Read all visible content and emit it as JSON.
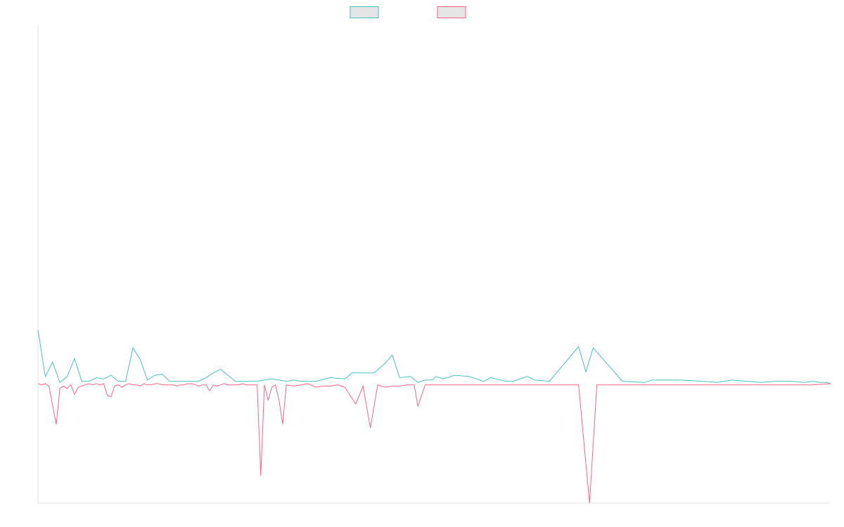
{
  "chart_data": {
    "type": "line",
    "title": "",
    "xlabel": "",
    "ylabel": "",
    "grid": false,
    "legend": {
      "placement": "top-center",
      "entries": [
        {
          "name": "",
          "color": "#4bc0c0",
          "fill": "#e5e5e5"
        },
        {
          "name": "",
          "color": "#ff6384",
          "fill": "#e5e5e5"
        }
      ]
    },
    "x_count": 217,
    "ylim": [
      -100,
      300
    ],
    "series": [
      {
        "name": "",
        "color": "#4bc0c0",
        "points": [
          [
            0,
            45
          ],
          [
            2,
            6
          ],
          [
            4,
            18
          ],
          [
            6,
            1
          ],
          [
            8,
            6
          ],
          [
            10,
            21
          ],
          [
            12,
            2
          ],
          [
            14,
            2
          ],
          [
            16,
            5
          ],
          [
            18,
            4
          ],
          [
            20,
            7
          ],
          [
            22,
            2
          ],
          [
            24,
            2
          ],
          [
            26,
            30
          ],
          [
            28,
            20
          ],
          [
            30,
            3
          ],
          [
            32,
            7
          ],
          [
            34,
            8
          ],
          [
            36,
            2
          ],
          [
            38,
            2
          ],
          [
            40,
            2
          ],
          [
            42,
            2
          ],
          [
            44,
            2
          ],
          [
            46,
            5
          ],
          [
            48,
            9
          ],
          [
            50,
            12
          ],
          [
            54,
            2
          ],
          [
            60,
            2
          ],
          [
            62,
            3
          ],
          [
            64,
            4
          ],
          [
            68,
            2
          ],
          [
            70,
            3
          ],
          [
            72,
            2
          ],
          [
            74,
            2
          ],
          [
            76,
            2
          ],
          [
            80,
            5
          ],
          [
            84,
            4
          ],
          [
            86,
            9
          ],
          [
            92,
            9
          ],
          [
            95,
            17
          ],
          [
            97,
            24
          ],
          [
            99,
            5
          ],
          [
            102,
            6
          ],
          [
            104,
            1
          ],
          [
            106,
            3
          ],
          [
            108,
            3
          ],
          [
            109,
            6
          ],
          [
            111,
            4
          ],
          [
            114,
            7
          ],
          [
            118,
            6
          ],
          [
            122,
            2
          ],
          [
            124,
            5
          ],
          [
            128,
            2
          ],
          [
            130,
            2
          ],
          [
            134,
            6
          ],
          [
            136,
            3
          ],
          [
            140,
            2
          ],
          [
            148,
            31
          ],
          [
            150,
            10
          ],
          [
            152,
            30
          ],
          [
            160,
            2
          ],
          [
            166,
            1
          ],
          [
            168,
            3
          ],
          [
            176,
            3
          ],
          [
            182,
            2
          ],
          [
            186,
            1
          ],
          [
            190,
            3
          ],
          [
            194,
            2
          ],
          [
            198,
            1
          ],
          [
            202,
            2
          ],
          [
            206,
            2
          ],
          [
            210,
            1
          ],
          [
            212,
            2
          ],
          [
            214,
            1
          ],
          [
            216,
            1
          ],
          [
            217,
            0
          ]
        ]
      },
      {
        "name": "",
        "color": "#ff6384",
        "points": [
          [
            0,
            0
          ],
          [
            1,
            -1
          ],
          [
            2,
            0
          ],
          [
            3,
            -2
          ],
          [
            5,
            -34
          ],
          [
            6,
            -4
          ],
          [
            7,
            -2
          ],
          [
            8,
            -4
          ],
          [
            9,
            -1
          ],
          [
            10,
            -9
          ],
          [
            11,
            -3
          ],
          [
            12,
            -2
          ],
          [
            13,
            -1
          ],
          [
            14,
            0
          ],
          [
            15,
            -1
          ],
          [
            16,
            0
          ],
          [
            17,
            -1
          ],
          [
            18,
            0
          ],
          [
            19,
            -10
          ],
          [
            20,
            -11
          ],
          [
            21,
            -2
          ],
          [
            22,
            -1
          ],
          [
            23,
            -3
          ],
          [
            24,
            -1
          ],
          [
            25,
            0
          ],
          [
            26,
            -1
          ],
          [
            27,
            -1
          ],
          [
            28,
            -2
          ],
          [
            29,
            0
          ],
          [
            30,
            -1
          ],
          [
            31,
            -1
          ],
          [
            32,
            0
          ],
          [
            33,
            0
          ],
          [
            34,
            -1
          ],
          [
            35,
            -1
          ],
          [
            36,
            -1
          ],
          [
            37,
            -1
          ],
          [
            38,
            -2
          ],
          [
            39,
            -1
          ],
          [
            40,
            -1
          ],
          [
            41,
            0
          ],
          [
            42,
            0
          ],
          [
            43,
            -1
          ],
          [
            44,
            -2
          ],
          [
            45,
            -1
          ],
          [
            46,
            -1
          ],
          [
            47,
            -6
          ],
          [
            48,
            -1
          ],
          [
            49,
            -2
          ],
          [
            50,
            -1
          ],
          [
            51,
            0
          ],
          [
            52,
            -1
          ],
          [
            53,
            -1
          ],
          [
            54,
            -1
          ],
          [
            55,
            -1
          ],
          [
            56,
            0
          ],
          [
            57,
            -1
          ],
          [
            58,
            -1
          ],
          [
            59,
            -1
          ],
          [
            60,
            -1
          ],
          [
            61,
            -77
          ],
          [
            62,
            -1
          ],
          [
            63,
            -14
          ],
          [
            64,
            -3
          ],
          [
            65,
            -1
          ],
          [
            66,
            -14
          ],
          [
            67,
            -34
          ],
          [
            68,
            -1
          ],
          [
            70,
            -2
          ],
          [
            72,
            -1
          ],
          [
            74,
            0
          ],
          [
            76,
            -3
          ],
          [
            78,
            -2
          ],
          [
            80,
            -2
          ],
          [
            82,
            -1
          ],
          [
            84,
            -3
          ],
          [
            87,
            -17
          ],
          [
            89,
            -2
          ],
          [
            91,
            -37
          ],
          [
            93,
            -1
          ],
          [
            95,
            -3
          ],
          [
            97,
            -2
          ],
          [
            99,
            -2
          ],
          [
            101,
            -1
          ],
          [
            103,
            -1
          ],
          [
            104,
            -19
          ],
          [
            106,
            -1
          ],
          [
            110,
            -1
          ],
          [
            116,
            -1
          ],
          [
            120,
            -1
          ],
          [
            126,
            -1
          ],
          [
            132,
            -1
          ],
          [
            138,
            -1
          ],
          [
            144,
            -1
          ],
          [
            148,
            -1
          ],
          [
            151,
            -100
          ],
          [
            153,
            -1
          ],
          [
            160,
            -1
          ],
          [
            168,
            -1
          ],
          [
            176,
            -1
          ],
          [
            182,
            -1
          ],
          [
            190,
            -1
          ],
          [
            198,
            -1
          ],
          [
            206,
            -1
          ],
          [
            212,
            -1
          ],
          [
            217,
            0
          ]
        ]
      }
    ]
  }
}
